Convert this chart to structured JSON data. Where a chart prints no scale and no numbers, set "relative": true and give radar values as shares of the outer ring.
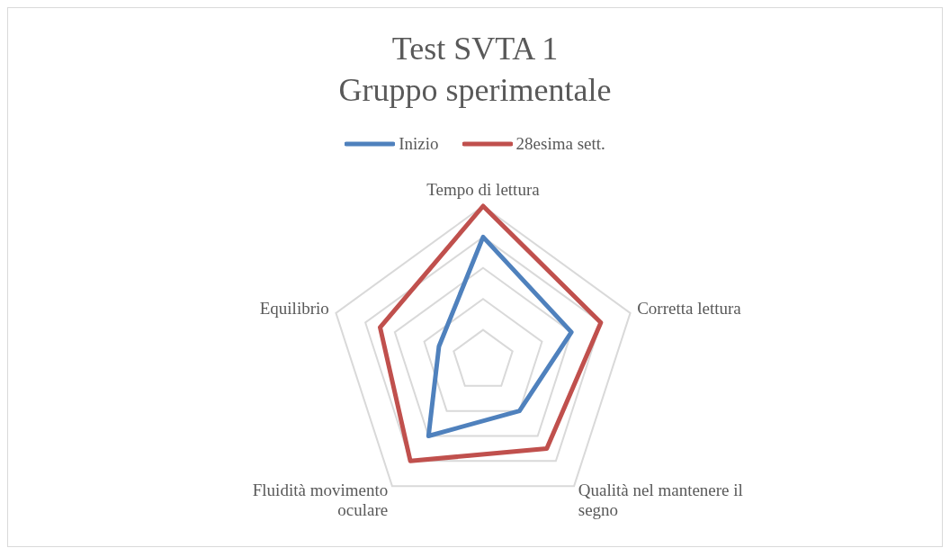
{
  "chart_data": {
    "type": "radar",
    "title": "Test SVTA 1\nGruppo sperimentale",
    "categories": [
      "Tempo di lettura",
      "Corretta lettura",
      "Qualità nel mantenere il segno",
      "Fluidità movimento oculare",
      "Equilibrio"
    ],
    "relative": true,
    "grid": true,
    "legend": "top",
    "marker": "none",
    "series": [
      {
        "name": "Inizio",
        "color": "#4f81bd",
        "values": [
          0.8,
          0.6,
          0.4,
          0.6,
          0.3
        ]
      },
      {
        "name": "28esima sett.",
        "color": "#c0504d",
        "values": [
          1.0,
          0.8,
          0.7,
          0.8,
          0.7
        ]
      }
    ]
  }
}
